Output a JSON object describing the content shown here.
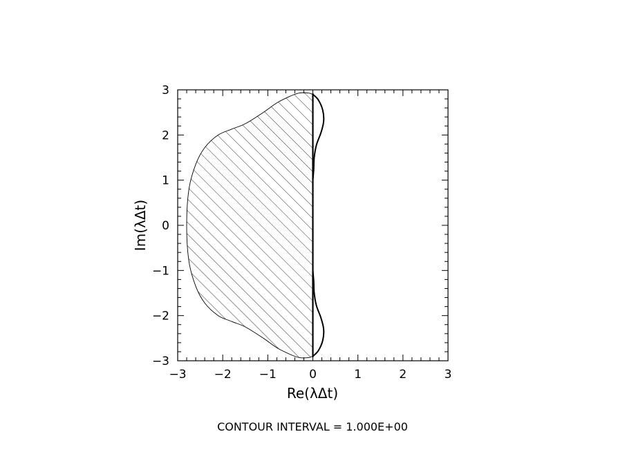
{
  "chart_data": {
    "type": "area",
    "xlabel": "Re(λΔt)",
    "ylabel": "Im(λΔt)",
    "xlim": [
      -3,
      3
    ],
    "ylim": [
      -3,
      3
    ],
    "x_ticks": [
      "−3",
      "−2",
      "−1",
      "0",
      "1",
      "2",
      "3"
    ],
    "y_ticks": [
      "−3",
      "−2",
      "−1",
      "0",
      "1",
      "2",
      "3"
    ],
    "grid": false,
    "fill_pattern": "diagonal-hatch",
    "stability_boundary": [
      [
        0.0,
        2.9
      ],
      [
        -0.1,
        2.93
      ],
      [
        -0.3,
        2.93
      ],
      [
        -0.5,
        2.86
      ],
      [
        -0.8,
        2.71
      ],
      [
        -1.1,
        2.5
      ],
      [
        -1.5,
        2.25
      ],
      [
        -1.8,
        2.13
      ],
      [
        -2.1,
        2.0
      ],
      [
        -2.4,
        1.72
      ],
      [
        -2.6,
        1.35
      ],
      [
        -2.75,
        0.8
      ],
      [
        -2.8,
        0.0
      ],
      [
        -2.75,
        -0.8
      ],
      [
        -2.6,
        -1.35
      ],
      [
        -2.4,
        -1.72
      ],
      [
        -2.1,
        -2.0
      ],
      [
        -1.8,
        -2.13
      ],
      [
        -1.5,
        -2.25
      ],
      [
        -1.1,
        -2.5
      ],
      [
        -0.8,
        -2.71
      ],
      [
        -0.5,
        -2.86
      ],
      [
        -0.3,
        -2.93
      ],
      [
        -0.1,
        -2.93
      ],
      [
        0.0,
        -2.9
      ]
    ],
    "upper_lobe": [
      [
        0.0,
        2.9
      ],
      [
        0.12,
        2.78
      ],
      [
        0.22,
        2.55
      ],
      [
        0.24,
        2.3
      ],
      [
        0.18,
        2.05
      ],
      [
        0.08,
        1.78
      ],
      [
        0.03,
        1.5
      ],
      [
        0.02,
        1.25
      ],
      [
        0.0,
        1.0
      ]
    ],
    "lower_lobe": [
      [
        0.0,
        -2.9
      ],
      [
        0.12,
        -2.78
      ],
      [
        0.22,
        -2.55
      ],
      [
        0.24,
        -2.3
      ],
      [
        0.18,
        -2.05
      ],
      [
        0.08,
        -1.78
      ],
      [
        0.03,
        -1.5
      ],
      [
        0.02,
        -1.25
      ],
      [
        0.0,
        -1.0
      ]
    ]
  },
  "footer": {
    "contour_note": "CONTOUR INTERVAL = 1.000E+00"
  }
}
